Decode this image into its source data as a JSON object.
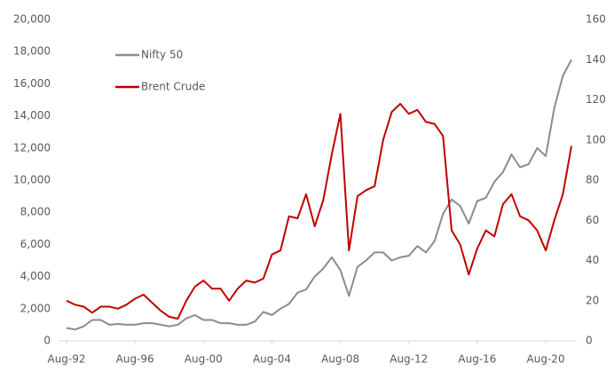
{
  "chart_data": {
    "type": "line",
    "x": [
      "Aug-92",
      null,
      null,
      null,
      null,
      null,
      null,
      null,
      "Aug-96",
      null,
      null,
      null,
      null,
      null,
      null,
      null,
      "Aug-00",
      null,
      null,
      null,
      null,
      null,
      null,
      null,
      "Aug-04",
      null,
      null,
      null,
      null,
      null,
      null,
      null,
      "Aug-08",
      null,
      null,
      null,
      null,
      null,
      null,
      null,
      "Aug-12",
      null,
      null,
      null,
      null,
      null,
      null,
      null,
      "Aug-16",
      null,
      null,
      null,
      null,
      null,
      null,
      null,
      "Aug-20",
      null,
      null,
      null
    ],
    "series": [
      {
        "name": "Nifty 50",
        "color": "#8c8c8c",
        "values": [
          800,
          700,
          900,
          1300,
          1300,
          1000,
          1050,
          1000,
          1000,
          1100,
          1100,
          1000,
          900,
          1000,
          1400,
          1600,
          1300,
          1300,
          1100,
          1100,
          1000,
          1000,
          1200,
          1800,
          1600,
          2000,
          2300,
          3000,
          3200,
          4000,
          4500,
          5200,
          4400,
          2800,
          4600,
          5000,
          5500,
          5500,
          5000,
          5200,
          5300,
          5900,
          5500,
          6200,
          7900,
          8800,
          8400,
          7300,
          8700,
          8900,
          9900,
          10500,
          11600,
          10800,
          11000,
          12000,
          11500,
          14500,
          16500,
          17500
        ]
      },
      {
        "name": "Brent Crude",
        "color": "#c00000",
        "axis": "y2",
        "values": [
          20,
          18,
          17,
          14,
          17,
          17,
          16,
          18,
          21,
          23,
          19,
          15,
          12,
          11,
          20,
          27,
          30,
          26,
          26,
          20,
          26,
          30,
          29,
          31,
          43,
          45,
          62,
          61,
          73,
          57,
          70,
          93,
          113,
          45,
          72,
          75,
          77,
          100,
          114,
          118,
          113,
          115,
          109,
          108,
          102,
          55,
          48,
          33,
          46,
          55,
          52,
          68,
          73,
          62,
          60,
          55,
          45,
          60,
          73,
          97
        ]
      }
    ],
    "ylim": [
      0,
      20000
    ],
    "yticks": [
      0,
      {
        "value": 2000,
        "label": "2,000"
      },
      {
        "value": 4000,
        "label": "4,000"
      },
      {
        "value": 6000,
        "label": "6,000"
      },
      {
        "value": 8000,
        "label": "8,000"
      },
      {
        "value": 10000,
        "label": "10,000"
      },
      {
        "value": 12000,
        "label": "12,000"
      },
      {
        "value": 14000,
        "label": "14,000"
      },
      {
        "value": 16000,
        "label": "16,000"
      },
      {
        "value": 18000,
        "label": "18,000"
      },
      {
        "value": 20000,
        "label": "20,000"
      }
    ],
    "y2lim": [
      0,
      160
    ],
    "y2ticks": [
      0,
      20,
      40,
      60,
      80,
      100,
      120,
      140,
      160
    ],
    "legend": "top-left",
    "grid": false
  }
}
